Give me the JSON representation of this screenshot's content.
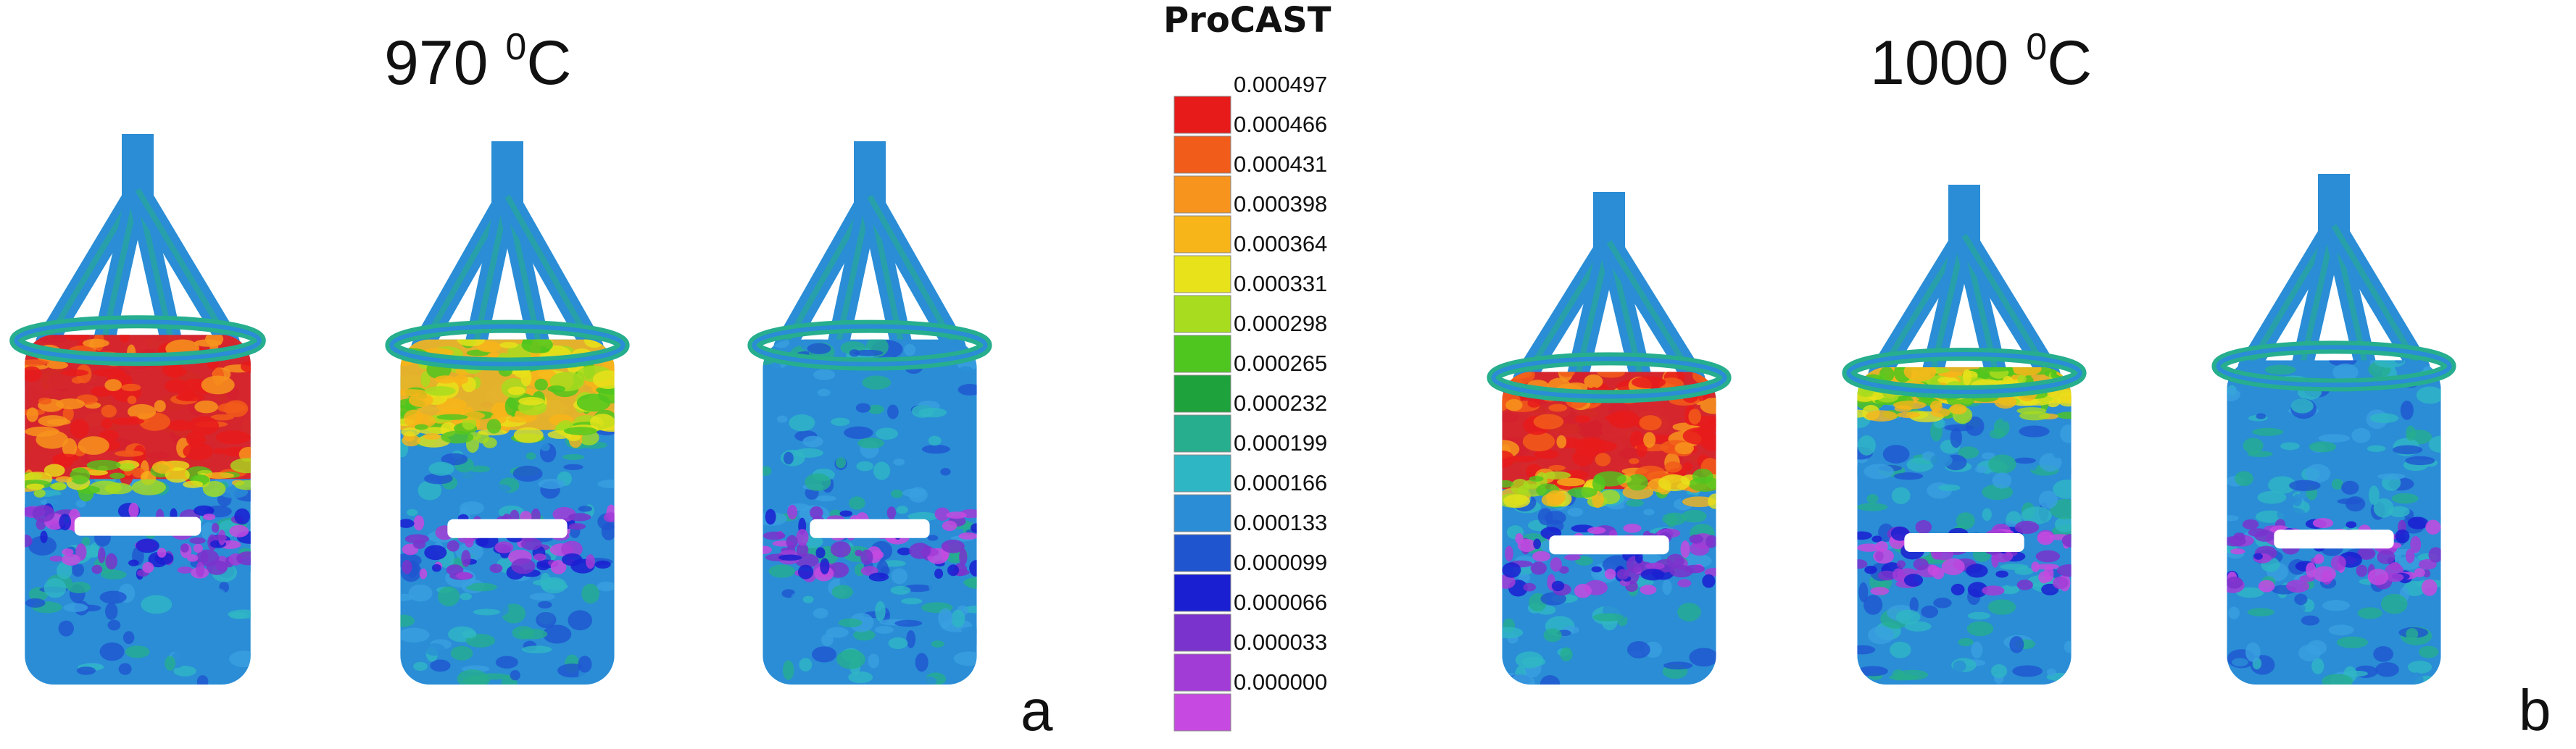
{
  "labels": {
    "left_temp": "970",
    "left_temp_unit_sup": "0",
    "left_temp_unit": "C",
    "right_temp": "1000",
    "right_temp_unit_sup": "0",
    "right_temp_unit": "C",
    "panel_a": "a",
    "panel_b": "b"
  },
  "legend": {
    "title": "ProCAST",
    "values": [
      "0.000497",
      "0.000466",
      "0.000431",
      "0.000398",
      "0.000364",
      "0.000331",
      "0.000298",
      "0.000265",
      "0.000232",
      "0.000199",
      "0.000166",
      "0.000133",
      "0.000099",
      "0.000066",
      "0.000033",
      "0.000000"
    ],
    "colors": [
      "#e81b1b",
      "#f25c1a",
      "#f7941d",
      "#f8b51a",
      "#e8e21a",
      "#a8dc1e",
      "#4fc51f",
      "#1ea23c",
      "#26ae8e",
      "#2fb6c4",
      "#2a8dd6",
      "#1f55cf",
      "#1a1fd1",
      "#7a33cc",
      "#a23cd7",
      "#c64ae1"
    ]
  },
  "castings": [
    {
      "name": "casting-970-1",
      "hot_level": 0.55,
      "accent": "#e81b1b"
    },
    {
      "name": "casting-970-2",
      "hot_level": 0.35,
      "accent": "#f8b51a"
    },
    {
      "name": "casting-970-3",
      "hot_level": 0.0,
      "accent": "#2a8dd6"
    },
    {
      "name": "casting-1000-1",
      "hot_level": 0.5,
      "accent": "#e81b1b"
    },
    {
      "name": "casting-1000-2",
      "hot_level": 0.15,
      "accent": "#a8dc1e"
    },
    {
      "name": "casting-1000-3",
      "hot_level": 0.0,
      "accent": "#2a8dd6"
    }
  ]
}
